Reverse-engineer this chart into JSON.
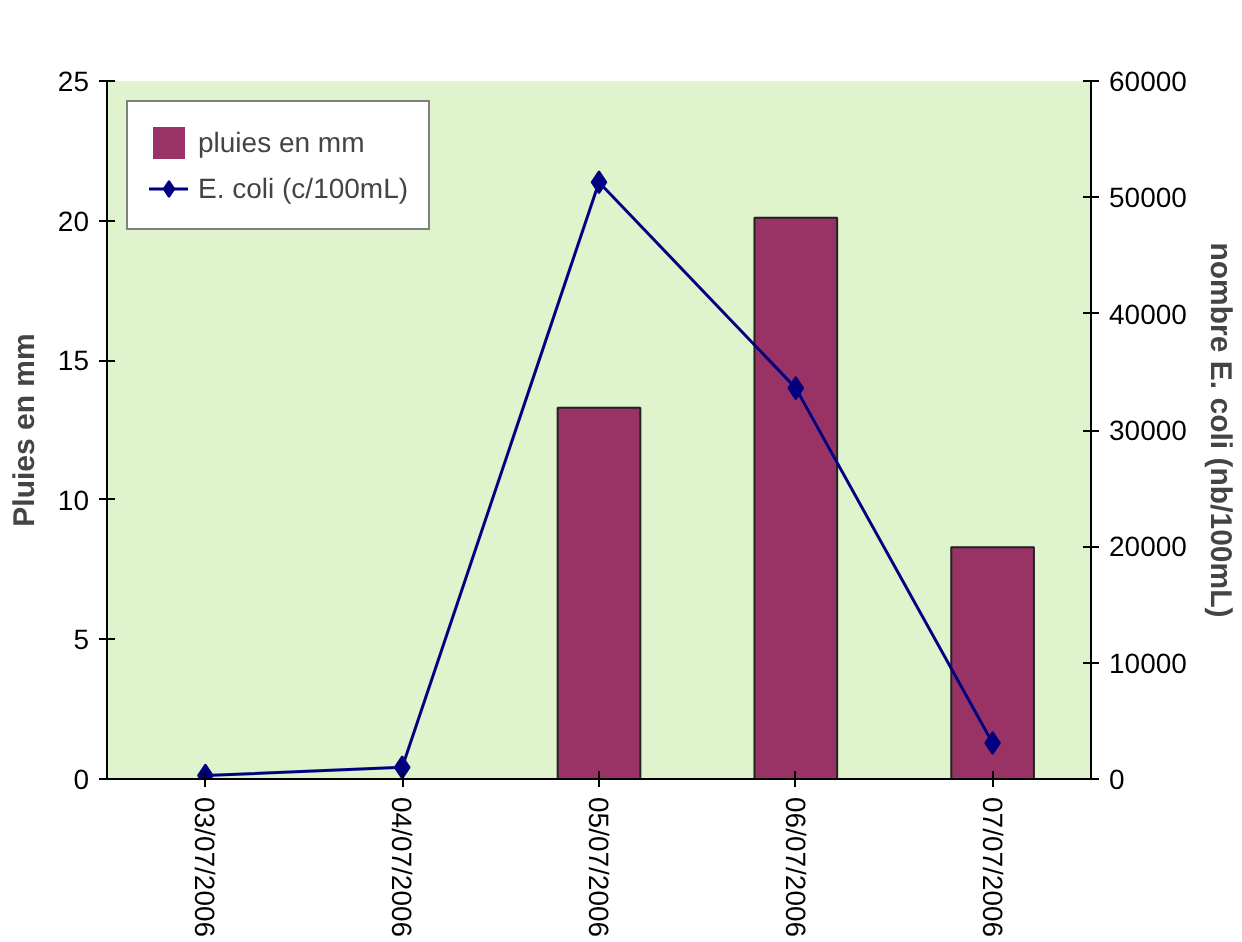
{
  "chart_data": {
    "type": "bar",
    "categories": [
      "03/07/2006",
      "04/07/2006",
      "05/07/2006",
      "06/07/2006",
      "07/07/2006"
    ],
    "ylabel": "Pluies en mm",
    "y2label": "nombre E. coli (nb/100mL)",
    "series": [
      {
        "name": "pluies en mm",
        "color": "#993366",
        "values": [
          0,
          0,
          13.3,
          20.1,
          8.3
        ]
      },
      {
        "name": "E. coli (c/100mL)",
        "type": "line",
        "axis": "y2",
        "color": "#000080",
        "marker": "diamond",
        "values": [
          300,
          1000,
          51300,
          33600,
          3100
        ]
      }
    ],
    "ylim": [
      0,
      25
    ],
    "yticks": [
      0,
      5,
      10,
      15,
      20,
      25
    ],
    "y2lim": [
      0,
      60000
    ],
    "y2ticks": [
      0,
      10000,
      20000,
      30000,
      40000,
      50000,
      60000
    ],
    "legend": "top left",
    "grid": false
  }
}
